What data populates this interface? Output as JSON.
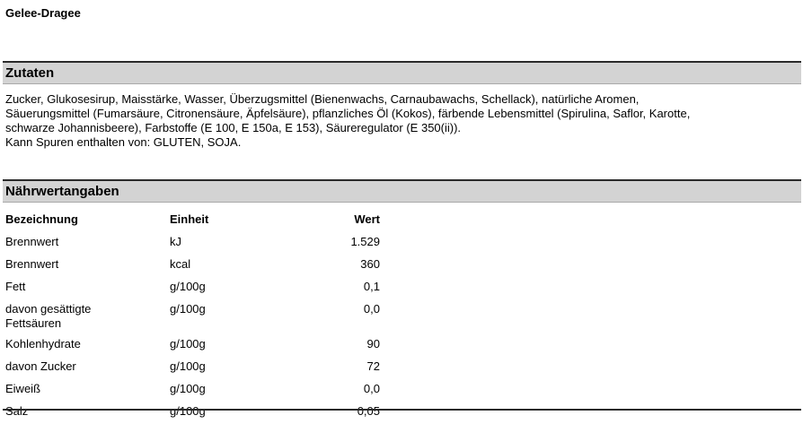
{
  "product": {
    "title": "Gelee-Dragee"
  },
  "ingredients": {
    "header": "Zutaten",
    "lines": [
      "Zucker, Glukosesirup, Maisstärke, Wasser, Überzugsmittel (Bienenwachs, Carnaubawachs, Schellack), natürliche Aromen,",
      "Säuerungsmittel (Fumarsäure, Citronensäure, Äpfelsäure), pflanzliches Öl (Kokos), färbende Lebensmittel  (Spirulina, Saflor, Karotte,",
      "schwarze Johannisbeere), Farbstoffe (E 100, E 150a, E 153), Säureregulator (E  350(ii)).",
      "Kann Spuren enthalten von: GLUTEN, SOJA."
    ]
  },
  "nutrition": {
    "header": "Nährwertangaben",
    "columns": {
      "name": "Bezeichnung",
      "unit": "Einheit",
      "value": "Wert"
    },
    "rows": [
      {
        "name": "Brennwert",
        "unit": "kJ",
        "value": "1.529"
      },
      {
        "name": "Brennwert",
        "unit": "kcal",
        "value": "360"
      },
      {
        "name": "Fett",
        "unit": "g/100g",
        "value": "0,1"
      },
      {
        "name": "davon gesättigte",
        "name2": "Fettsäuren",
        "unit": "g/100g",
        "value": "0,0"
      },
      {
        "name": "Kohlenhydrate",
        "unit": "g/100g",
        "value": "90"
      },
      {
        "name": "davon Zucker",
        "unit": "g/100g",
        "value": "72"
      },
      {
        "name": "Eiweiß",
        "unit": "g/100g",
        "value": "0,0"
      },
      {
        "name": "Salz",
        "unit": "g/100g",
        "value": "0,05"
      }
    ]
  }
}
